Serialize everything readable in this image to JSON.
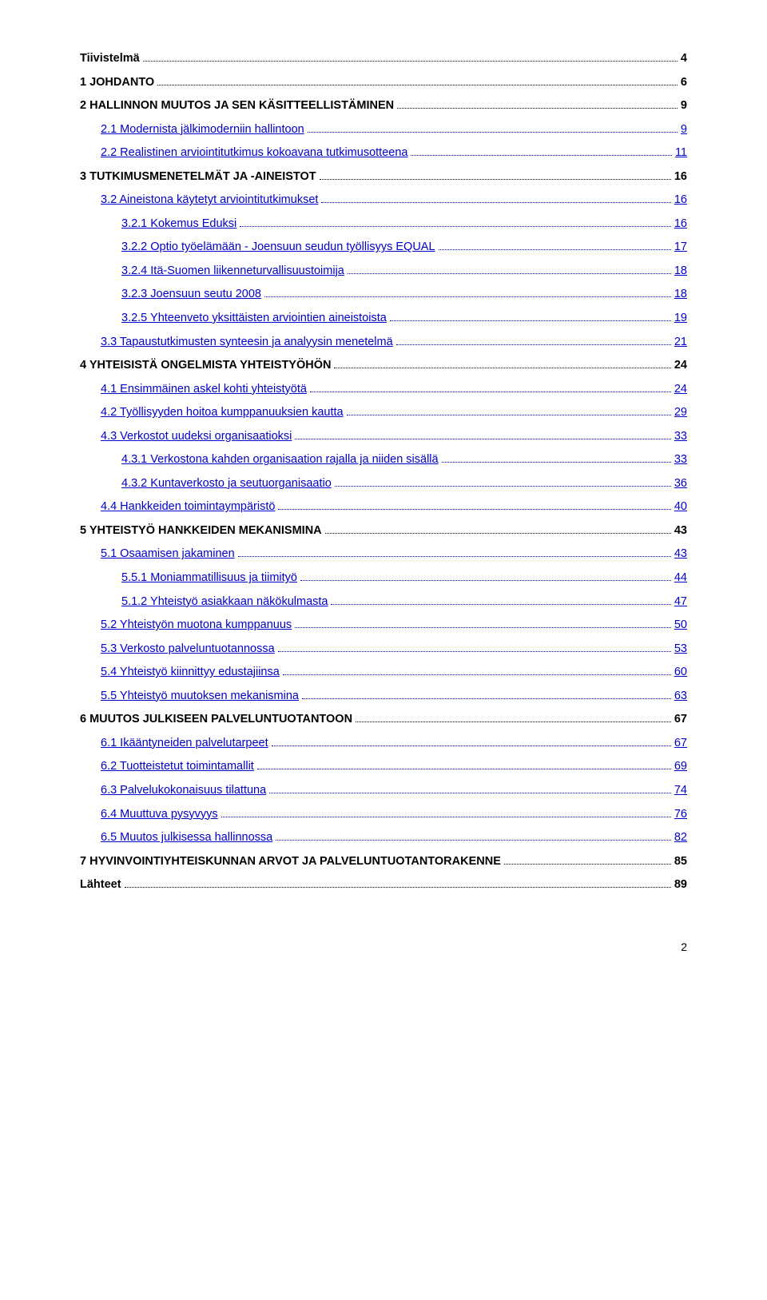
{
  "toc": [
    {
      "label": "Tiivistelmä",
      "page": "4",
      "bold": true,
      "indent": 0,
      "link": false
    },
    {
      "label": "1 JOHDANTO",
      "page": "6",
      "bold": true,
      "indent": 0,
      "link": false
    },
    {
      "label": "2 HALLINNON MUUTOS JA SEN KÄSITTEELLISTÄMINEN",
      "page": "9",
      "bold": true,
      "indent": 0,
      "link": false
    },
    {
      "label": "2.1 Modernista jälkimoderniin hallintoon",
      "page": "9",
      "bold": false,
      "indent": 1,
      "link": true
    },
    {
      "label": "2.2 Realistinen arviointitutkimus kokoavana tutkimusotteena",
      "page": "11",
      "bold": false,
      "indent": 1,
      "link": true
    },
    {
      "label": "3 TUTKIMUSMENETELMÄT JA -AINEISTOT",
      "page": "16",
      "bold": true,
      "indent": 0,
      "link": false
    },
    {
      "label": "3.2 Aineistona käytetyt arviointitutkimukset",
      "page": "16",
      "bold": false,
      "indent": 1,
      "link": true
    },
    {
      "label": "3.2.1 Kokemus Eduksi",
      "page": "16",
      "bold": false,
      "indent": 2,
      "link": true
    },
    {
      "label": "3.2.2 Optio työelämään - Joensuun seudun työllisyys EQUAL",
      "page": "17",
      "bold": false,
      "indent": 2,
      "link": true
    },
    {
      "label": "3.2.4 Itä-Suomen liikenneturvallisuustoimija",
      "page": "18",
      "bold": false,
      "indent": 2,
      "link": true
    },
    {
      "label": "3.2.3 Joensuun seutu 2008",
      "page": "18",
      "bold": false,
      "indent": 2,
      "link": true
    },
    {
      "label": "3.2.5 Yhteenveto yksittäisten arviointien aineistoista",
      "page": "19",
      "bold": false,
      "indent": 2,
      "link": true
    },
    {
      "label": "3.3 Tapaustutkimusten synteesin ja analyysin menetelmä",
      "page": "21",
      "bold": false,
      "indent": 1,
      "link": true
    },
    {
      "label": "4 YHTEISISTÄ ONGELMISTA YHTEISTYÖHÖN",
      "page": "24",
      "bold": true,
      "indent": 0,
      "link": false
    },
    {
      "label": "4.1 Ensimmäinen askel kohti yhteistyötä",
      "page": "24",
      "bold": false,
      "indent": 1,
      "link": true
    },
    {
      "label": "4.2 Työllisyyden hoitoa kumppanuuksien kautta",
      "page": "29",
      "bold": false,
      "indent": 1,
      "link": true
    },
    {
      "label": "4.3 Verkostot uudeksi organisaatioksi",
      "page": "33",
      "bold": false,
      "indent": 1,
      "link": true
    },
    {
      "label": "4.3.1 Verkostona kahden organisaation rajalla ja niiden sisällä",
      "page": "33",
      "bold": false,
      "indent": 2,
      "link": true
    },
    {
      "label": "4.3.2 Kuntaverkosto ja seutuorganisaatio",
      "page": "36",
      "bold": false,
      "indent": 2,
      "link": true
    },
    {
      "label": "4.4 Hankkeiden toimintaympäristö",
      "page": "40",
      "bold": false,
      "indent": 1,
      "link": true
    },
    {
      "label": "5 YHTEISTYÖ HANKKEIDEN MEKANISMINA",
      "page": "43",
      "bold": true,
      "indent": 0,
      "link": false
    },
    {
      "label": "5.1 Osaamisen jakaminen",
      "page": "43",
      "bold": false,
      "indent": 1,
      "link": true
    },
    {
      "label": "5.5.1 Moniammatillisuus ja tiimityö",
      "page": "44",
      "bold": false,
      "indent": 2,
      "link": true
    },
    {
      "label": "5.1.2 Yhteistyö asiakkaan näkökulmasta",
      "page": "47",
      "bold": false,
      "indent": 2,
      "link": true
    },
    {
      "label": "5.2 Yhteistyön muotona kumppanuus",
      "page": "50",
      "bold": false,
      "indent": 1,
      "link": true
    },
    {
      "label": "5.3 Verkosto palveluntuotannossa",
      "page": "53",
      "bold": false,
      "indent": 1,
      "link": true
    },
    {
      "label": "5.4 Yhteistyö kiinnittyy edustajiinsa",
      "page": "60",
      "bold": false,
      "indent": 1,
      "link": true
    },
    {
      "label": "5.5 Yhteistyö muutoksen mekanismina",
      "page": "63",
      "bold": false,
      "indent": 1,
      "link": true
    },
    {
      "label": "6 MUUTOS JULKISEEN PALVELUNTUOTANTOON",
      "page": "67",
      "bold": true,
      "indent": 0,
      "link": false
    },
    {
      "label": "6.1 Ikääntyneiden palvelutarpeet",
      "page": "67",
      "bold": false,
      "indent": 1,
      "link": true
    },
    {
      "label": "6.2 Tuotteistetut toimintamallit",
      "page": "69",
      "bold": false,
      "indent": 1,
      "link": true
    },
    {
      "label": "6.3 Palvelukokonaisuus tilattuna",
      "page": "74",
      "bold": false,
      "indent": 1,
      "link": true
    },
    {
      "label": "6.4 Muuttuva pysyvyys",
      "page": "76",
      "bold": false,
      "indent": 1,
      "link": true
    },
    {
      "label": "6.5 Muutos julkisessa hallinnossa",
      "page": "82",
      "bold": false,
      "indent": 1,
      "link": true
    },
    {
      "label": "7 HYVINVOINTIYHTEISKUNNAN ARVOT JA PALVELUNTUOTANTORAKENNE",
      "page": "85",
      "bold": true,
      "indent": 0,
      "link": false
    },
    {
      "label": "Lähteet",
      "page": "89",
      "bold": true,
      "indent": 0,
      "link": false
    }
  ],
  "footer": {
    "pageNumber": "2"
  }
}
